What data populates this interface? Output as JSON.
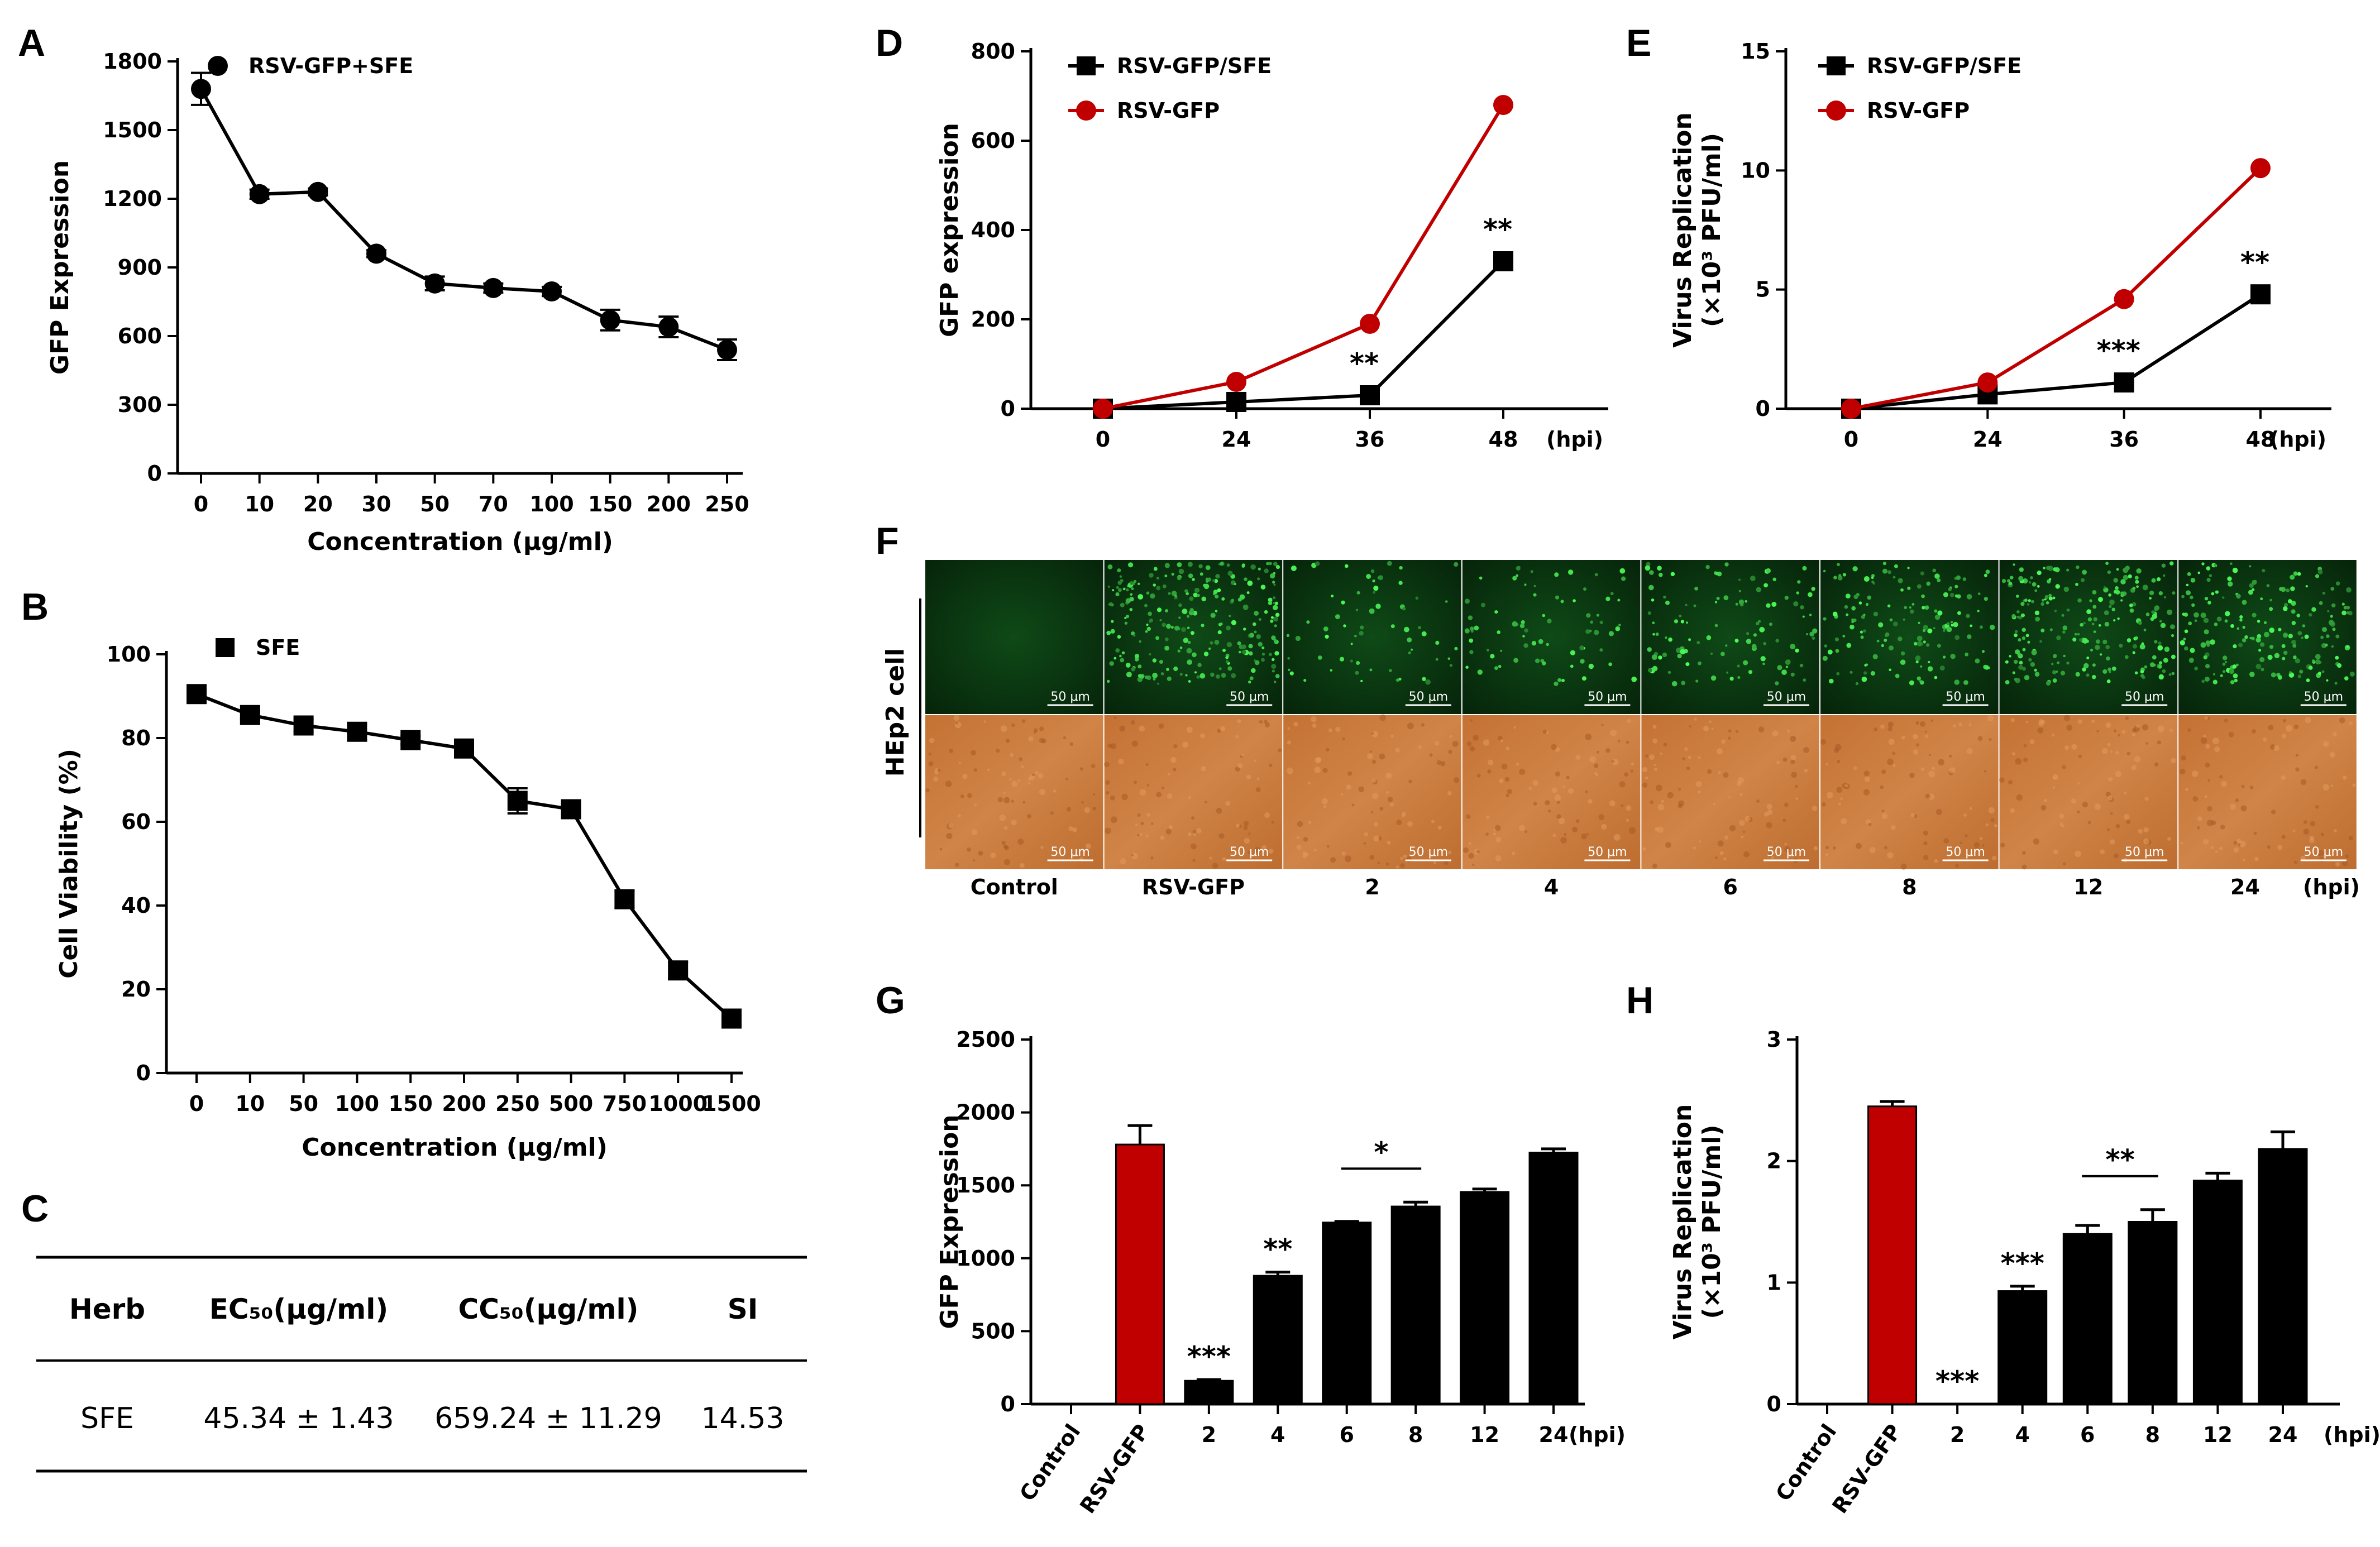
{
  "panel_labels": {
    "a": "A",
    "b": "B",
    "c": "C",
    "d": "D",
    "e": "E",
    "f": "F",
    "g": "G",
    "h": "H"
  },
  "units": {
    "hpi": "(hpi)"
  },
  "colors": {
    "black": "#000000",
    "red": "#c00000",
    "green_bg": "#0b3410",
    "brightfield": "#c9783a"
  },
  "chart_data": [
    {
      "panel": "A",
      "type": "line",
      "categories": [
        "0",
        "10",
        "20",
        "30",
        "50",
        "70",
        "100",
        "150",
        "200",
        "250"
      ],
      "series": [
        {
          "name": "RSV-GFP+SFE",
          "values": [
            1680,
            1220,
            1230,
            960,
            830,
            810,
            795,
            670,
            640,
            540
          ],
          "errors": [
            70,
            20,
            15,
            15,
            30,
            20,
            20,
            45,
            45,
            45
          ],
          "color": "#000000",
          "marker": "circle"
        }
      ],
      "ylim": [
        0,
        1800
      ],
      "yticks": [
        0,
        300,
        600,
        900,
        1200,
        1500,
        1800
      ],
      "xlabel": "Concentration (μg/ml)",
      "ylabel": "GFP Expression",
      "legend": "top-left"
    },
    {
      "panel": "B",
      "type": "line",
      "categories": [
        "0",
        "10",
        "50",
        "100",
        "150",
        "200",
        "250",
        "500",
        "750",
        "1000",
        "1500"
      ],
      "series": [
        {
          "name": "SFE",
          "values": [
            90.5,
            85.5,
            83,
            81.5,
            79.5,
            77.5,
            65,
            63,
            41.5,
            24.5,
            13
          ],
          "errors": [
            2,
            1,
            1.5,
            2,
            1,
            1,
            3,
            1.5,
            2,
            2,
            1.5
          ],
          "color": "#000000",
          "marker": "square"
        }
      ],
      "ylim": [
        0,
        100
      ],
      "yticks": [
        0,
        20,
        40,
        60,
        80,
        100
      ],
      "xlabel": "Concentration (μg/ml)",
      "ylabel": "Cell Viability (%)",
      "legend": "top-left"
    },
    {
      "panel": "C",
      "type": "table",
      "headers": [
        "Herb",
        "EC₅₀(μg/ml)",
        "CC₅₀(μg/ml)",
        "SI"
      ],
      "rows": [
        [
          "SFE",
          "45.34 ± 1.43",
          "659.24 ± 11.29",
          "14.53"
        ]
      ]
    },
    {
      "panel": "D",
      "type": "line",
      "categories": [
        "0",
        "24",
        "36",
        "48"
      ],
      "series": [
        {
          "name": "RSV-GFP/SFE",
          "values": [
            0,
            15,
            30,
            330
          ],
          "color": "#000000",
          "marker": "square"
        },
        {
          "name": "RSV-GFP",
          "values": [
            0,
            60,
            190,
            680
          ],
          "color": "#c00000",
          "marker": "circle"
        }
      ],
      "ylim": [
        0,
        800
      ],
      "yticks": [
        0,
        200,
        400,
        600,
        800
      ],
      "xlabel": "(hpi)",
      "ylabel": "GFP expression",
      "legend": "top-left",
      "annotations": [
        {
          "text": "**",
          "category": "36",
          "value": 30
        },
        {
          "text": "**",
          "category": "48",
          "value": 330
        }
      ]
    },
    {
      "panel": "E",
      "type": "line",
      "categories": [
        "0",
        "24",
        "36",
        "48"
      ],
      "series": [
        {
          "name": "RSV-GFP/SFE",
          "values": [
            0,
            0.6,
            1.1,
            4.8
          ],
          "color": "#000000",
          "marker": "square"
        },
        {
          "name": "RSV-GFP",
          "values": [
            0,
            1.1,
            4.6,
            10.1
          ],
          "color": "#c00000",
          "marker": "circle"
        }
      ],
      "ylim": [
        0,
        15
      ],
      "yticks": [
        0,
        5,
        10,
        15
      ],
      "xlabel": "(hpi)",
      "ylabel_line1": "Virus Replication",
      "ylabel_line2": "(×10³ PFU/ml)",
      "legend": "top-left",
      "annotations": [
        {
          "text": "***",
          "category": "36",
          "value": 1.1
        },
        {
          "text": "**",
          "category": "48",
          "value": 4.8
        }
      ]
    },
    {
      "panel": "G",
      "type": "bar",
      "categories": [
        "Control",
        "RSV-GFP",
        "2",
        "4",
        "6",
        "8",
        "12",
        "24"
      ],
      "values": [
        0,
        1780,
        160,
        880,
        1245,
        1355,
        1455,
        1725
      ],
      "errors": [
        0,
        130,
        8,
        25,
        8,
        30,
        20,
        25
      ],
      "colors": [
        "#000000",
        "#c00000",
        "#000000",
        "#000000",
        "#000000",
        "#000000",
        "#000000",
        "#000000"
      ],
      "ylim": [
        0,
        2500
      ],
      "yticks": [
        0,
        500,
        1000,
        1500,
        2000,
        2500
      ],
      "xlabel": "(hpi)",
      "ylabel": "GFP Expression",
      "annotations": [
        {
          "text": "***",
          "category": "2"
        },
        {
          "text": "**",
          "category": "4"
        },
        {
          "text": "*",
          "span": [
            "6",
            "8"
          ]
        }
      ]
    },
    {
      "panel": "H",
      "type": "bar",
      "categories": [
        "Control",
        "RSV-GFP",
        "2",
        "4",
        "6",
        "8",
        "12",
        "24"
      ],
      "values": [
        0,
        2.45,
        0,
        0.93,
        1.4,
        1.5,
        1.84,
        2.1
      ],
      "errors": [
        0,
        0.04,
        0,
        0.04,
        0.07,
        0.1,
        0.06,
        0.14
      ],
      "colors": [
        "#000000",
        "#c00000",
        "#000000",
        "#000000",
        "#000000",
        "#000000",
        "#000000",
        "#000000"
      ],
      "ylim": [
        0,
        3
      ],
      "yticks": [
        0,
        1,
        2,
        3
      ],
      "xlabel": "(hpi)",
      "ylabel_line1": "Virus Replication",
      "ylabel_line2": "(×10³ PFU/ml)",
      "annotations": [
        {
          "text": "***",
          "category": "2"
        },
        {
          "text": "***",
          "category": "4"
        },
        {
          "text": "**",
          "span": [
            "6",
            "8"
          ]
        }
      ]
    }
  ],
  "panel_f": {
    "row_label": "HEp2 cell",
    "scale_bar": "50 μm",
    "columns": [
      "Control",
      "RSV-GFP",
      "2",
      "4",
      "6",
      "8",
      "12",
      "24"
    ],
    "unit": "(hpi)",
    "green_density": [
      0,
      1.0,
      0.25,
      0.3,
      0.45,
      0.6,
      0.9,
      0.75
    ]
  }
}
